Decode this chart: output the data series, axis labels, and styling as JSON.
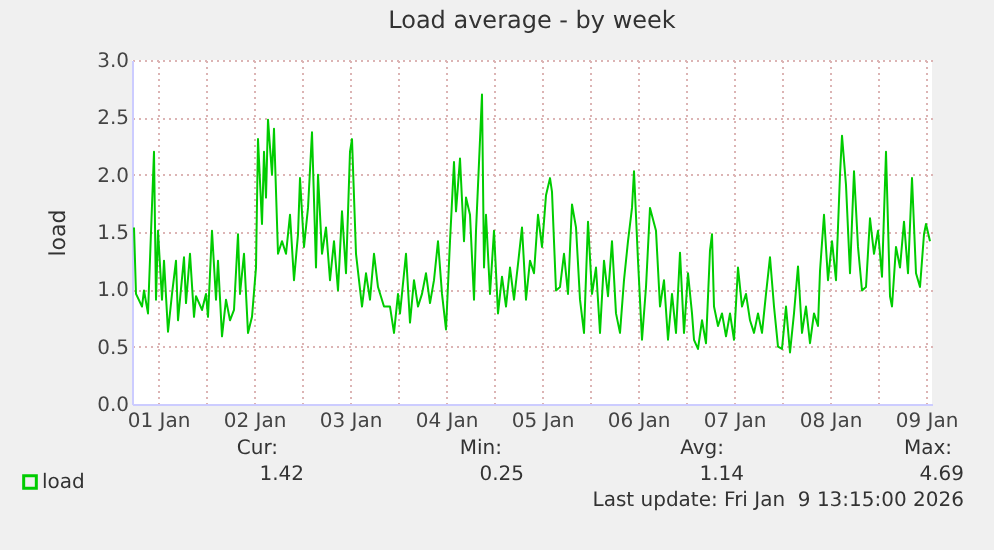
{
  "chart_data": {
    "type": "line",
    "title": "Load average - by week",
    "ylabel": "load",
    "xlim": [
      "2026-01-01T05:30",
      "2026-01-09T13:30"
    ],
    "xticks": [
      {
        "value": "2026-01-01T12:00",
        "label": "01 Jan"
      },
      {
        "value": "2026-01-02T00:00",
        "label": null
      },
      {
        "value": "2026-01-02T12:00",
        "label": "02 Jan"
      },
      {
        "value": "2026-01-03T00:00",
        "label": null
      },
      {
        "value": "2026-01-03T12:00",
        "label": "03 Jan"
      },
      {
        "value": "2026-01-04T00:00",
        "label": null
      },
      {
        "value": "2026-01-04T12:00",
        "label": "04 Jan"
      },
      {
        "value": "2026-01-05T00:00",
        "label": null
      },
      {
        "value": "2026-01-05T12:00",
        "label": "05 Jan"
      },
      {
        "value": "2026-01-06T00:00",
        "label": null
      },
      {
        "value": "2026-01-06T12:00",
        "label": "06 Jan"
      },
      {
        "value": "2026-01-07T00:00",
        "label": null
      },
      {
        "value": "2026-01-07T12:00",
        "label": "07 Jan"
      },
      {
        "value": "2026-01-08T00:00",
        "label": null
      },
      {
        "value": "2026-01-08T12:00",
        "label": "08 Jan"
      },
      {
        "value": "2026-01-09T00:00",
        "label": null
      },
      {
        "value": "2026-01-09T12:00",
        "label": "09 Jan"
      }
    ],
    "ylim": [
      0,
      3
    ],
    "yticks": [
      {
        "value": 0,
        "label": "0.0"
      },
      {
        "value": 0.5,
        "label": "0.5"
      },
      {
        "value": 1,
        "label": "1.0"
      },
      {
        "value": 1.5,
        "label": "1.5"
      },
      {
        "value": 2,
        "label": "2.0"
      },
      {
        "value": 2.5,
        "label": "2.5"
      },
      {
        "value": 3,
        "label": "3.0"
      }
    ],
    "grid": true,
    "legend": "bottom left",
    "annotations": [
      "Cur:",
      "Min:",
      "Avg:",
      "Max:",
      "1.42",
      "0.25",
      "1.14",
      "4.69",
      "Last update: Fri Jan  9 13:15:00 2026"
    ],
    "series": [
      {
        "name": "load",
        "color": "#00cc00",
        "x": [
          "2026-01-01T06:00",
          "2026-01-01T06:30",
          "2026-01-01T08:00",
          "2026-01-01T08:30",
          "2026-01-01T09:30",
          "2026-01-01T11:00",
          "2026-01-01T11:30",
          "2026-01-01T12:00",
          "2026-01-01T13:00",
          "2026-01-01T13:30",
          "2026-01-01T14:30",
          "2026-01-01T15:30",
          "2026-01-01T16:30",
          "2026-01-01T17:00",
          "2026-01-01T18:30",
          "2026-01-01T19:00",
          "2026-01-01T20:00",
          "2026-01-01T21:00",
          "2026-01-01T21:30",
          "2026-01-01T23:00",
          "2026-01-02T00:00",
          "2026-01-02T00:30",
          "2026-01-02T01:30",
          "2026-01-02T02:30",
          "2026-01-02T03:00",
          "2026-01-02T04:00",
          "2026-01-02T05:00",
          "2026-01-02T06:00",
          "2026-01-02T07:00",
          "2026-01-02T08:00",
          "2026-01-02T08:30",
          "2026-01-02T09:30",
          "2026-01-02T10:30",
          "2026-01-02T11:30",
          "2026-01-02T12:30",
          "2026-01-02T13:00",
          "2026-01-02T14:00",
          "2026-01-02T14:30",
          "2026-01-02T15:00",
          "2026-01-02T15:30",
          "2026-01-02T16:30",
          "2026-01-02T17:00",
          "2026-01-02T18:00",
          "2026-01-02T19:00",
          "2026-01-02T20:00",
          "2026-01-02T21:00",
          "2026-01-02T22:00",
          "2026-01-02T23:00",
          "2026-01-02T23:30",
          "2026-01-03T00:30",
          "2026-01-03T01:30",
          "2026-01-03T02:30",
          "2026-01-03T03:30",
          "2026-01-03T04:00",
          "2026-01-03T05:00",
          "2026-01-03T06:00",
          "2026-01-03T07:00",
          "2026-01-03T08:00",
          "2026-01-03T09:00",
          "2026-01-03T10:00",
          "2026-01-03T11:00",
          "2026-01-03T12:00",
          "2026-01-03T12:30",
          "2026-01-03T13:30",
          "2026-01-03T15:00",
          "2026-01-03T16:00",
          "2026-01-03T17:00",
          "2026-01-03T18:00",
          "2026-01-03T19:00",
          "2026-01-03T20:30",
          "2026-01-03T22:00",
          "2026-01-03T23:00",
          "2026-01-04T00:00",
          "2026-01-04T00:30",
          "2026-01-04T02:00",
          "2026-01-04T03:00",
          "2026-01-04T04:00",
          "2026-01-04T05:00",
          "2026-01-04T06:00",
          "2026-01-04T07:00",
          "2026-01-04T08:00",
          "2026-01-04T09:00",
          "2026-01-04T10:00",
          "2026-01-04T11:00",
          "2026-01-04T12:00",
          "2026-01-04T13:00",
          "2026-01-04T14:00",
          "2026-01-04T14:30",
          "2026-01-04T15:30",
          "2026-01-04T16:30",
          "2026-01-04T17:00",
          "2026-01-04T18:00",
          "2026-01-04T19:00",
          "2026-01-04T19:30",
          "2026-01-04T21:00",
          "2026-01-04T21:30",
          "2026-01-04T22:00",
          "2026-01-04T23:00",
          "2026-01-05T00:00",
          "2026-01-05T01:00",
          "2026-01-05T02:00",
          "2026-01-05T03:00",
          "2026-01-05T04:00",
          "2026-01-05T05:00",
          "2026-01-05T06:00",
          "2026-01-05T07:00",
          "2026-01-05T08:00",
          "2026-01-05T09:00",
          "2026-01-05T10:00",
          "2026-01-05T11:00",
          "2026-01-05T12:00",
          "2026-01-05T13:00",
          "2026-01-05T14:00",
          "2026-01-05T14:30",
          "2026-01-05T15:30",
          "2026-01-05T16:30",
          "2026-01-05T17:30",
          "2026-01-05T18:30",
          "2026-01-05T19:30",
          "2026-01-05T20:30",
          "2026-01-05T21:30",
          "2026-01-05T22:30",
          "2026-01-05T23:30",
          "2026-01-06T00:30",
          "2026-01-06T01:30",
          "2026-01-06T02:30",
          "2026-01-06T03:30",
          "2026-01-06T04:30",
          "2026-01-06T05:30",
          "2026-01-06T06:30",
          "2026-01-06T07:30",
          "2026-01-06T08:30",
          "2026-01-06T09:30",
          "2026-01-06T10:30",
          "2026-01-06T11:00",
          "2026-01-06T12:00",
          "2026-01-06T13:00",
          "2026-01-06T14:00",
          "2026-01-06T15:00",
          "2026-01-06T16:30",
          "2026-01-06T17:30",
          "2026-01-06T18:30",
          "2026-01-06T19:30",
          "2026-01-06T20:30",
          "2026-01-06T21:30",
          "2026-01-06T22:30",
          "2026-01-06T23:30",
          "2026-01-07T00:30",
          "2026-01-07T01:30",
          "2026-01-07T02:00",
          "2026-01-07T03:00",
          "2026-01-07T04:00",
          "2026-01-07T05:00",
          "2026-01-07T06:00",
          "2026-01-07T06:30",
          "2026-01-07T07:00",
          "2026-01-07T08:00",
          "2026-01-07T09:00",
          "2026-01-07T10:00",
          "2026-01-07T11:00",
          "2026-01-07T12:00",
          "2026-01-07T13:00",
          "2026-01-07T14:00",
          "2026-01-07T15:00",
          "2026-01-07T16:00",
          "2026-01-07T17:00",
          "2026-01-07T18:00",
          "2026-01-07T19:00",
          "2026-01-07T20:00",
          "2026-01-07T21:00",
          "2026-01-07T22:00",
          "2026-01-07T23:00",
          "2026-01-08T00:00",
          "2026-01-08T01:00",
          "2026-01-08T02:00",
          "2026-01-08T03:00",
          "2026-01-08T04:00",
          "2026-01-08T05:00",
          "2026-01-08T06:00",
          "2026-01-08T07:00",
          "2026-01-08T08:00",
          "2026-01-08T09:00",
          "2026-01-08T09:30",
          "2026-01-08T10:30",
          "2026-01-08T11:30",
          "2026-01-08T12:30",
          "2026-01-08T13:30",
          "2026-01-08T14:30",
          "2026-01-08T15:00",
          "2026-01-08T16:00",
          "2026-01-08T17:00",
          "2026-01-08T18:00",
          "2026-01-08T19:00",
          "2026-01-08T20:00",
          "2026-01-08T21:00",
          "2026-01-08T22:00",
          "2026-01-08T23:00",
          "2026-01-09T00:00",
          "2026-01-09T01:00",
          "2026-01-09T02:00",
          "2026-01-09T03:00",
          "2026-01-09T03:30",
          "2026-01-09T04:30",
          "2026-01-09T05:30",
          "2026-01-09T06:30",
          "2026-01-09T07:30",
          "2026-01-09T08:30",
          "2026-01-09T09:30",
          "2026-01-09T10:30",
          "2026-01-09T11:30",
          "2026-01-09T12:00",
          "2026-01-09T13:00"
        ],
        "values": [
          1.54,
          0.96,
          0.85,
          0.99,
          0.79,
          2.2,
          0.91,
          1.51,
          0.91,
          1.25,
          0.63,
          0.96,
          1.25,
          0.73,
          1.28,
          0.88,
          1.31,
          0.76,
          0.94,
          0.82,
          0.96,
          0.76,
          1.51,
          0.91,
          1.25,
          0.59,
          0.91,
          0.73,
          0.82,
          1.48,
          0.96,
          1.31,
          0.62,
          0.76,
          1.19,
          2.31,
          1.57,
          2.2,
          1.8,
          2.48,
          2.0,
          2.4,
          1.31,
          1.42,
          1.31,
          1.65,
          1.08,
          1.48,
          1.97,
          1.37,
          1.71,
          2.37,
          1.19,
          2.0,
          1.31,
          1.54,
          1.08,
          1.42,
          0.99,
          1.68,
          1.14,
          2.2,
          2.31,
          1.31,
          0.85,
          1.14,
          0.91,
          1.31,
          1.02,
          0.85,
          0.85,
          0.62,
          0.96,
          0.79,
          1.31,
          0.71,
          1.08,
          0.85,
          0.96,
          1.14,
          0.88,
          1.08,
          1.42,
          0.96,
          0.65,
          1.42,
          2.11,
          1.68,
          2.14,
          1.42,
          1.8,
          1.65,
          0.91,
          1.51,
          2.7,
          1.19,
          1.65,
          0.96,
          1.51,
          0.79,
          1.11,
          0.85,
          1.19,
          0.91,
          1.22,
          1.54,
          0.91,
          1.25,
          1.14,
          1.65,
          1.37,
          1.82,
          1.97,
          1.85,
          0.99,
          1.02,
          1.31,
          0.96,
          1.74,
          1.54,
          0.91,
          0.62,
          1.59,
          0.96,
          1.19,
          0.62,
          1.25,
          0.94,
          1.42,
          0.79,
          0.62,
          1.08,
          1.42,
          1.71,
          2.03,
          1.25,
          0.56,
          1.02,
          1.71,
          1.51,
          0.85,
          1.08,
          0.56,
          0.96,
          0.62,
          1.32,
          0.62,
          1.14,
          0.79,
          0.56,
          0.48,
          0.73,
          0.53,
          1.34,
          1.48,
          0.85,
          0.68,
          0.79,
          0.59,
          0.79,
          0.56,
          1.19,
          0.85,
          0.96,
          0.73,
          0.62,
          0.79,
          0.62,
          0.96,
          1.28,
          0.85,
          0.5,
          0.48,
          0.85,
          0.45,
          0.79,
          1.2,
          0.62,
          0.85,
          0.53,
          0.79,
          0.68,
          1.16,
          1.65,
          1.08,
          1.42,
          1.08,
          2.0,
          2.34,
          1.91,
          1.14,
          2.03,
          1.37,
          0.99,
          1.02,
          1.62,
          1.31,
          1.51,
          1.11,
          2.2,
          0.94,
          0.85,
          1.37,
          1.19,
          1.59,
          1.14,
          1.97,
          1.14,
          1.02,
          1.48,
          1.57,
          1.42
        ]
      }
    ]
  }
}
